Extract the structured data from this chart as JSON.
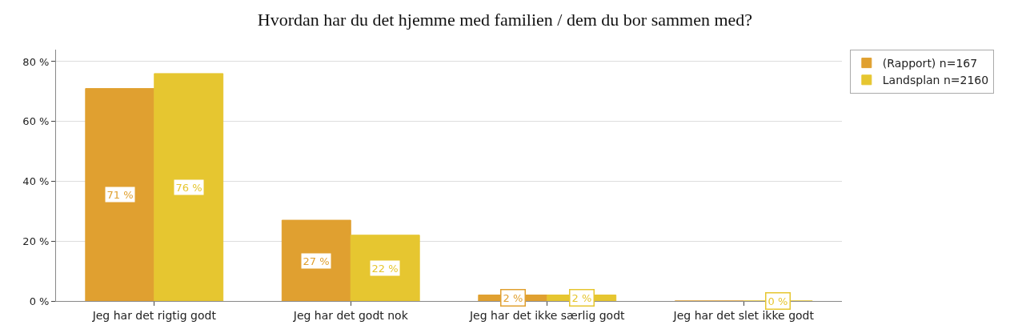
{
  "chart_data": {
    "type": "bar",
    "title": "Hvordan har du det hjemme med familien / dem du bor sammen med?",
    "categories": [
      "Jeg har det rigtig godt",
      "Jeg har det godt nok",
      "Jeg har det ikke særlig godt",
      "Jeg har det slet ikke godt"
    ],
    "series": [
      {
        "name": "(Rapport) n=167",
        "color": "#e0a030",
        "values": [
          71,
          27,
          2,
          0
        ],
        "value_labels": [
          "71 %",
          "27 %",
          "2 %",
          null
        ]
      },
      {
        "name": "Landsplan n=2160",
        "color": "#e6c630",
        "values": [
          76,
          22,
          2,
          0
        ],
        "value_labels": [
          "76 %",
          "22 %",
          "2 %",
          "0 %"
        ]
      }
    ],
    "ylim": [
      0,
      84
    ],
    "yticks": [
      {
        "value": 0,
        "label": "0 %"
      },
      {
        "value": 20,
        "label": "20 %"
      },
      {
        "value": 40,
        "label": "40 %"
      },
      {
        "value": 60,
        "label": "60 %"
      },
      {
        "value": 80,
        "label": "80 %"
      }
    ],
    "grid": "y",
    "legend": "top right"
  }
}
